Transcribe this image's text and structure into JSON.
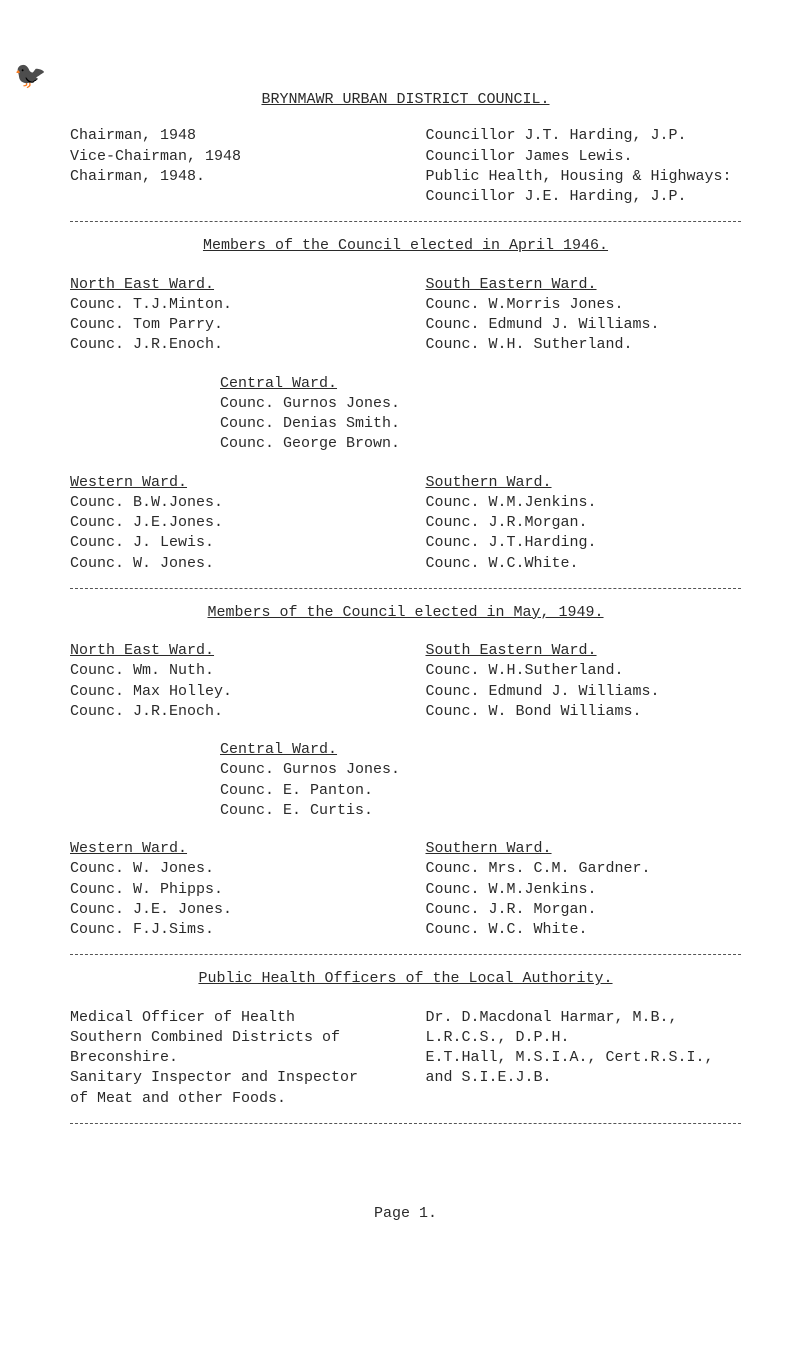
{
  "title": "BRYNMAWR URBAN DISTRICT COUNCIL.",
  "chairman_block": {
    "left": [
      "Chairman, 1948",
      "Vice-Chairman, 1948",
      "Chairman, 1948."
    ],
    "right": [
      "Councillor J.T. Harding, J.P.",
      "Councillor James Lewis.",
      "Public Health, Housing & Highways:",
      "Councillor J.E. Harding, J.P."
    ]
  },
  "members_1946_heading": "Members of the Council elected in April 1946.",
  "north_east_ward": {
    "heading": "North East Ward.",
    "items": [
      "Counc. T.J.Minton.",
      "Counc. Tom Parry.",
      "Counc. J.R.Enoch."
    ]
  },
  "south_eastern_ward": {
    "heading": "South Eastern Ward.",
    "items": [
      "Counc. W.Morris Jones.",
      "Counc. Edmund J. Williams.",
      "Counc. W.H. Sutherland."
    ]
  },
  "central_ward_1946": {
    "heading": "Central Ward.",
    "items": [
      "Counc. Gurnos Jones.",
      "Counc. Denias Smith.",
      "Counc. George Brown."
    ]
  },
  "western_ward_1946": {
    "heading": "Western Ward.",
    "items": [
      "Counc. B.W.Jones.",
      "Counc. J.E.Jones.",
      "Counc. J. Lewis.",
      "Counc. W. Jones."
    ]
  },
  "southern_ward_1946": {
    "heading": "Southern Ward.",
    "items": [
      "Counc. W.M.Jenkins.",
      "Counc. J.R.Morgan.",
      "Counc. J.T.Harding.",
      "Counc. W.C.White."
    ]
  },
  "members_1949_heading": "Members of the Council elected in May, 1949.",
  "north_east_ward_49": {
    "heading": "North East Ward.",
    "items": [
      "Counc. Wm. Nuth.",
      "Counc. Max Holley.",
      "Counc. J.R.Enoch."
    ]
  },
  "south_eastern_ward_49": {
    "heading": "South Eastern Ward.",
    "items": [
      "Counc. W.H.Sutherland.",
      "Counc. Edmund J. Williams.",
      "Counc. W. Bond Williams."
    ]
  },
  "central_ward_1949": {
    "heading": "Central Ward.",
    "items": [
      "Counc. Gurnos Jones.",
      "Counc. E. Panton.",
      "Counc. E. Curtis."
    ]
  },
  "western_ward_1949": {
    "heading": "Western Ward.",
    "items": [
      "Counc. W. Jones.",
      "Counc. W. Phipps.",
      "Counc. J.E. Jones.",
      "Counc. F.J.Sims."
    ]
  },
  "southern_ward_1949": {
    "heading": "Southern Ward.",
    "items": [
      "Counc. Mrs. C.M. Gardner.",
      "Counc. W.M.Jenkins.",
      "Counc. J.R. Morgan.",
      "Counc. W.C. White."
    ]
  },
  "officers_heading": "Public Health Officers of the Local Authority.",
  "officers": {
    "left": [
      "Medical Officer of Health",
      "Southern Combined Districts of",
      "Breconshire.",
      "Sanitary Inspector and Inspector",
      "of Meat and other Foods."
    ],
    "right": [
      "Dr. D.Macdonal Harmar, M.B.,",
      "L.R.C.S., D.P.H.",
      "",
      "E.T.Hall, M.S.I.A., Cert.R.S.I.,",
      "and S.I.E.J.B."
    ]
  },
  "page_label": "Page 1."
}
